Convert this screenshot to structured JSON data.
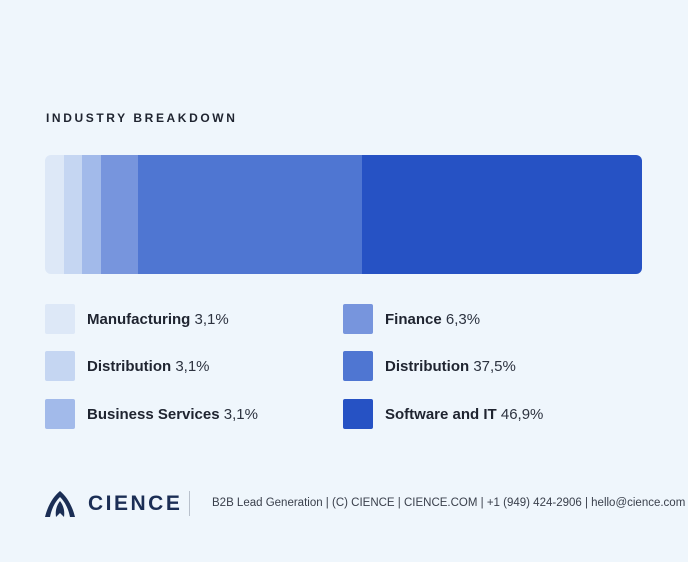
{
  "title": "INDUSTRY BREAKDOWN",
  "chart_data": {
    "type": "bar",
    "orientation": "horizontal-stacked",
    "title": "INDUSTRY BREAKDOWN",
    "categories": [
      "Manufacturing",
      "Distribution",
      "Business Services",
      "Finance",
      "Distribution",
      "Software and IT"
    ],
    "values": [
      3.1,
      3.1,
      3.1,
      6.3,
      37.5,
      46.9
    ],
    "value_labels": [
      "3,1%",
      "3,1%",
      "3,1%",
      "6,3%",
      "37,5%",
      "46,9%"
    ],
    "colors": [
      "#dde8f7",
      "#c5d6f2",
      "#a2baea",
      "#7795dd",
      "#4f76d2",
      "#2652c4"
    ],
    "unit": "%",
    "legend": "bottom"
  },
  "footer": {
    "logo_text": "CIENCE",
    "text": "B2B Lead Generation | (C) CIENCE | CIENCE.COM | +1 (949) 424-2906 | hello@cience.com",
    "brand_color": "#1b2e55"
  }
}
